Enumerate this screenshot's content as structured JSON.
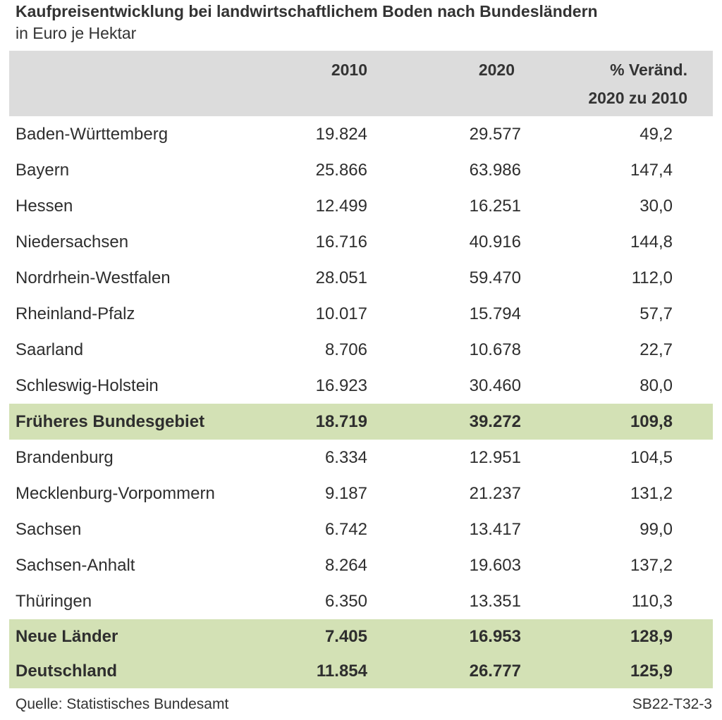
{
  "title": "Kaufpreisentwicklung bei landwirtschaftlichem Boden nach Bundesländern",
  "subtitle": "in Euro je Hektar",
  "header": {
    "col1": "2010",
    "col2": "2020",
    "col3_line1": "% Veränd.",
    "col3_line2": "2020 zu 2010"
  },
  "rows_west": [
    {
      "name": "Baden-Württemberg",
      "v2010": "19.824",
      "v2020": "29.577",
      "change": "49,2"
    },
    {
      "name": "Bayern",
      "v2010": "25.866",
      "v2020": "63.986",
      "change": "147,4"
    },
    {
      "name": "Hessen",
      "v2010": "12.499",
      "v2020": "16.251",
      "change": "30,0"
    },
    {
      "name": "Niedersachsen",
      "v2010": "16.716",
      "v2020": "40.916",
      "change": "144,8"
    },
    {
      "name": "Nordrhein-Westfalen",
      "v2010": "28.051",
      "v2020": "59.470",
      "change": "112,0"
    },
    {
      "name": "Rheinland-Pfalz",
      "v2010": "10.017",
      "v2020": "15.794",
      "change": "57,7"
    },
    {
      "name": "Saarland",
      "v2010": "8.706",
      "v2020": "10.678",
      "change": "22,7"
    },
    {
      "name": "Schleswig-Holstein",
      "v2010": "16.923",
      "v2020": "30.460",
      "change": "80,0"
    }
  ],
  "total_west": {
    "name": "Früheres Bundesgebiet",
    "v2010": "18.719",
    "v2020": "39.272",
    "change": "109,8"
  },
  "rows_east": [
    {
      "name": "Brandenburg",
      "v2010": "6.334",
      "v2020": "12.951",
      "change": "104,5"
    },
    {
      "name": "Mecklenburg-Vorpommern",
      "v2010": "9.187",
      "v2020": "21.237",
      "change": "131,2"
    },
    {
      "name": "Sachsen",
      "v2010": "6.742",
      "v2020": "13.417",
      "change": "99,0"
    },
    {
      "name": "Sachsen-Anhalt",
      "v2010": "8.264",
      "v2020": "19.603",
      "change": "137,2"
    },
    {
      "name": "Thüringen",
      "v2010": "6.350",
      "v2020": "13.351",
      "change": "110,3"
    }
  ],
  "total_east": {
    "name": "Neue Länder",
    "v2010": "7.405",
    "v2020": "16.953",
    "change": "128,9"
  },
  "total_de": {
    "name": "Deutschland",
    "v2010": "11.854",
    "v2020": "26.777",
    "change": "125,9"
  },
  "footer": {
    "source": "Quelle: Statistisches Bundesamt",
    "code": "SB22-T32-3"
  }
}
